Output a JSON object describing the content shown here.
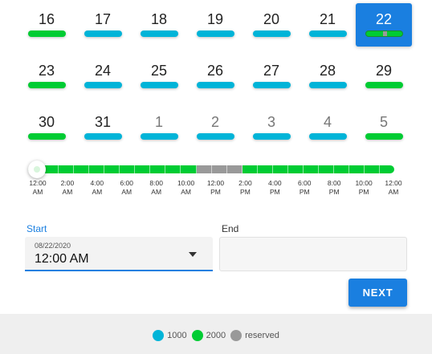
{
  "colors": {
    "accent": "#1a7fe0",
    "tier_1000": "#00b4d8",
    "tier_2000": "#00cc33",
    "reserved": "#999999"
  },
  "calendar": {
    "weeks": [
      [
        {
          "day": "16",
          "tier": "2000",
          "other": false,
          "selected": false
        },
        {
          "day": "17",
          "tier": "1000",
          "other": false,
          "selected": false
        },
        {
          "day": "18",
          "tier": "1000",
          "other": false,
          "selected": false
        },
        {
          "day": "19",
          "tier": "1000",
          "other": false,
          "selected": false
        },
        {
          "day": "20",
          "tier": "1000",
          "other": false,
          "selected": false
        },
        {
          "day": "21",
          "tier": "1000",
          "other": false,
          "selected": false
        },
        {
          "day": "22",
          "tier": "2000",
          "other": false,
          "selected": true
        }
      ],
      [
        {
          "day": "23",
          "tier": "2000",
          "other": false,
          "selected": false
        },
        {
          "day": "24",
          "tier": "1000",
          "other": false,
          "selected": false
        },
        {
          "day": "25",
          "tier": "1000",
          "other": false,
          "selected": false
        },
        {
          "day": "26",
          "tier": "1000",
          "other": false,
          "selected": false
        },
        {
          "day": "27",
          "tier": "1000",
          "other": false,
          "selected": false
        },
        {
          "day": "28",
          "tier": "1000",
          "other": false,
          "selected": false
        },
        {
          "day": "29",
          "tier": "2000",
          "other": false,
          "selected": false
        }
      ],
      [
        {
          "day": "30",
          "tier": "2000",
          "other": false,
          "selected": false
        },
        {
          "day": "31",
          "tier": "1000",
          "other": false,
          "selected": false
        },
        {
          "day": "1",
          "tier": "1000",
          "other": true,
          "selected": false
        },
        {
          "day": "2",
          "tier": "1000",
          "other": true,
          "selected": false
        },
        {
          "day": "3",
          "tier": "1000",
          "other": true,
          "selected": false
        },
        {
          "day": "4",
          "tier": "1000",
          "other": true,
          "selected": false
        },
        {
          "day": "5",
          "tier": "2000",
          "other": true,
          "selected": false
        }
      ]
    ]
  },
  "timeline": {
    "segments": [
      "2000",
      "2000",
      "2000",
      "2000",
      "2000",
      "2000",
      "2000",
      "2000",
      "2000",
      "2000",
      "2000",
      "reserved",
      "reserved",
      "reserved",
      "2000",
      "2000",
      "2000",
      "2000",
      "2000",
      "2000",
      "2000",
      "2000",
      "2000",
      "2000"
    ],
    "ticks": [
      [
        "12:00",
        "AM"
      ],
      [
        "2:00",
        "AM"
      ],
      [
        "4:00",
        "AM"
      ],
      [
        "6:00",
        "AM"
      ],
      [
        "8:00",
        "AM"
      ],
      [
        "10:00",
        "AM"
      ],
      [
        "12:00",
        "PM"
      ],
      [
        "2:00",
        "PM"
      ],
      [
        "4:00",
        "PM"
      ],
      [
        "6:00",
        "PM"
      ],
      [
        "8:00",
        "PM"
      ],
      [
        "10:00",
        "PM"
      ],
      [
        "12:00",
        "AM"
      ]
    ]
  },
  "form": {
    "start_label": "Start",
    "start_date": "08/22/2020",
    "start_time": "12:00 AM",
    "end_label": "End",
    "end_value": ""
  },
  "next_label": "NEXT",
  "legend": [
    {
      "label": "1000",
      "tier": "1000"
    },
    {
      "label": "2000",
      "tier": "2000"
    },
    {
      "label": "reserved",
      "tier": "reserved"
    }
  ]
}
